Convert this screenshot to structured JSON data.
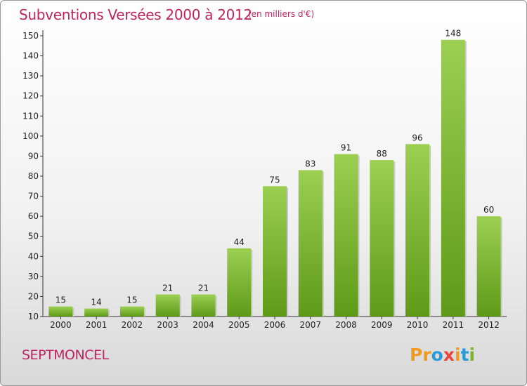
{
  "header": {
    "title": "Subventions Versées 2000 à 2012",
    "subtitle": "(en milliers d'€)"
  },
  "footer": {
    "place": "SEPTMONCEL",
    "logo": [
      "P",
      "r",
      "o",
      "x",
      "i",
      "t",
      "i"
    ]
  },
  "colors": {
    "accent": "#c0245c",
    "bar_top": "#9ccf52",
    "bar_bottom": "#5e9a18",
    "logo": [
      "#f29a1f",
      "#f29a1f",
      "#2a9bd8",
      "#e9453c",
      "#f29a1f",
      "#2a9bd8",
      "#7bb52a"
    ]
  },
  "chart_data": {
    "type": "bar",
    "title": "Subventions Versées 2000 à 2012",
    "subtitle": "(en milliers d'€)",
    "categories": [
      "2000",
      "2001",
      "2002",
      "2003",
      "2004",
      "2005",
      "2006",
      "2007",
      "2008",
      "2009",
      "2010",
      "2011",
      "2012"
    ],
    "values": [
      15,
      14,
      15,
      21,
      21,
      44,
      75,
      83,
      91,
      88,
      96,
      148,
      60
    ],
    "ylim": [
      10,
      150
    ],
    "yticks": [
      10,
      20,
      30,
      40,
      50,
      60,
      70,
      80,
      90,
      100,
      110,
      120,
      130,
      140,
      150
    ],
    "grid": false,
    "legend": "none"
  }
}
